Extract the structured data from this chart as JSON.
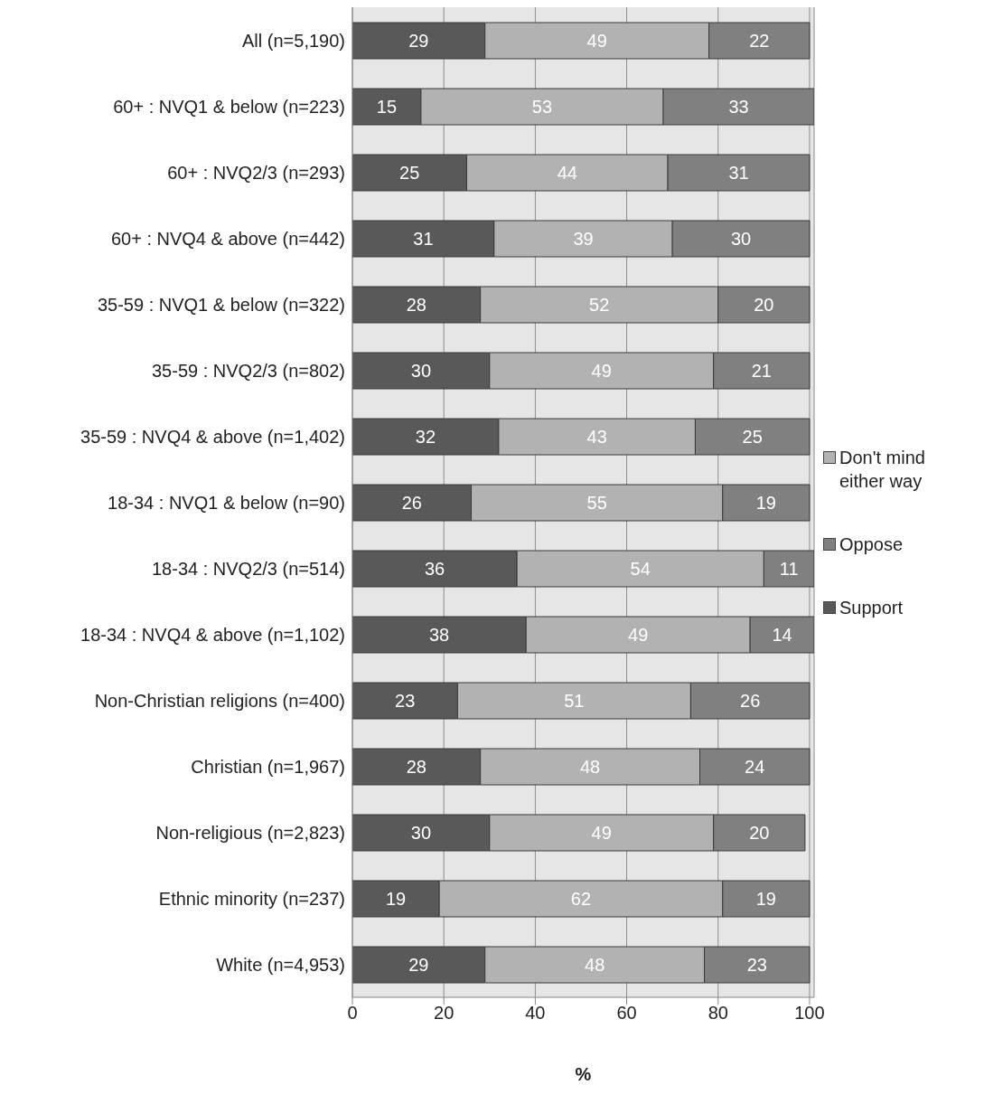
{
  "chart_data": {
    "type": "bar",
    "orientation": "horizontal",
    "stacked": true,
    "categories": [
      "All (n=5,190)",
      "60+ : NVQ1 & below (n=223)",
      "60+ : NVQ2/3 (n=293)",
      "60+ : NVQ4 & above (n=442)",
      "35-59 : NVQ1 & below (n=322)",
      "35-59 : NVQ2/3 (n=802)",
      "35-59 : NVQ4 & above (n=1,402)",
      "18-34 : NVQ1 & below (n=90)",
      "18-34 : NVQ2/3 (n=514)",
      "18-34 : NVQ4 & above (n=1,102)",
      "Non-Christian religions (n=400)",
      "Christian (n=1,967)",
      "Non-religious (n=2,823)",
      "Ethnic minority (n=237)",
      "White (n=4,953)"
    ],
    "series": [
      {
        "name": "Support",
        "color": "#595959",
        "values": [
          29,
          15,
          25,
          31,
          28,
          30,
          32,
          26,
          36,
          38,
          23,
          28,
          30,
          19,
          29
        ]
      },
      {
        "name": "Don't mind either way",
        "color": "#b2b2b2",
        "values": [
          49,
          53,
          44,
          39,
          52,
          49,
          43,
          55,
          54,
          49,
          51,
          48,
          49,
          62,
          48
        ]
      },
      {
        "name": "Oppose",
        "color": "#808080",
        "values": [
          22,
          33,
          31,
          30,
          20,
          21,
          25,
          19,
          11,
          14,
          26,
          24,
          20,
          19,
          23
        ]
      }
    ],
    "xlim": [
      0,
      101
    ],
    "xticks": [
      0,
      20,
      40,
      60,
      80,
      100
    ],
    "xlabel": "%",
    "grid": "x",
    "legend": "right",
    "data_labels": true
  }
}
